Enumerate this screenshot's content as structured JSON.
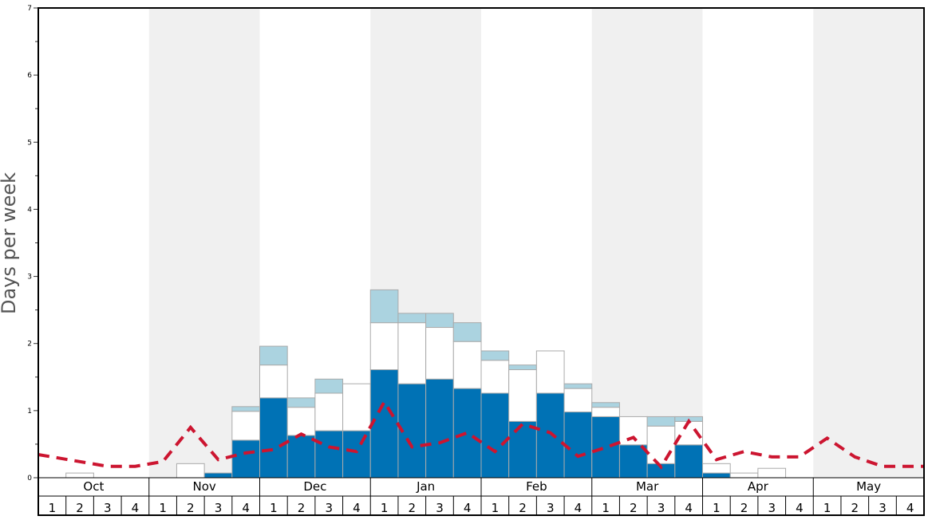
{
  "chart_data": {
    "type": "bar",
    "ylabel": "Days per week",
    "ylim": [
      0,
      7
    ],
    "y_ticks": [
      0,
      1,
      2,
      3,
      4,
      5,
      6,
      7
    ],
    "months": [
      "Oct",
      "Nov",
      "Dec",
      "Jan",
      "Feb",
      "Mar",
      "Apr",
      "May"
    ],
    "weeks": [
      "1",
      "2",
      "3",
      "4"
    ],
    "grid": false,
    "colors": {
      "dark": "#0072b5",
      "white": "#ffffff",
      "light": "#abd3e0",
      "line": "#cc1530",
      "shade": "#f0f0f0",
      "frame": "#000000",
      "bar_edge": "#aaaaaa"
    },
    "series": [
      {
        "values": [
          0,
          0,
          0,
          0,
          0,
          0,
          0.07,
          0.56,
          1.19,
          0.63,
          0.7,
          0.7,
          1.61,
          1.4,
          1.47,
          1.33,
          1.26,
          0.84,
          1.26,
          0.98,
          0.91,
          0.49,
          0.21,
          0.49,
          0.07,
          0,
          0,
          0,
          0,
          0,
          0,
          0
        ]
      },
      {
        "values": [
          0,
          0.07,
          0,
          0,
          0,
          0.21,
          0,
          0.43,
          0.49,
          0.42,
          0.56,
          0.7,
          0.7,
          0.91,
          0.77,
          0.7,
          0.49,
          0.77,
          0.63,
          0.35,
          0.14,
          0.42,
          0.56,
          0.35,
          0.14,
          0.07,
          0.14,
          0,
          0,
          0,
          0,
          0
        ]
      },
      {
        "values": [
          0,
          0,
          0,
          0,
          0,
          0,
          0,
          0.07,
          0.28,
          0.14,
          0.21,
          0,
          0.49,
          0.14,
          0.21,
          0.28,
          0.14,
          0.07,
          0,
          0.07,
          0.07,
          0,
          0.14,
          0.07,
          0,
          0,
          0,
          0,
          0,
          0,
          0,
          0
        ]
      },
      {
        "values": [
          0.31,
          0.24,
          0.17,
          0.17,
          0.24,
          0.75,
          0.27,
          0.37,
          0.42,
          0.65,
          0.46,
          0.39,
          1.13,
          0.46,
          0.52,
          0.67,
          0.39,
          0.8,
          0.67,
          0.32,
          0.45,
          0.6,
          0.16,
          0.84,
          0.27,
          0.39,
          0.31,
          0.31,
          0.59,
          0.31,
          0.17,
          0.17
        ]
      }
    ]
  }
}
